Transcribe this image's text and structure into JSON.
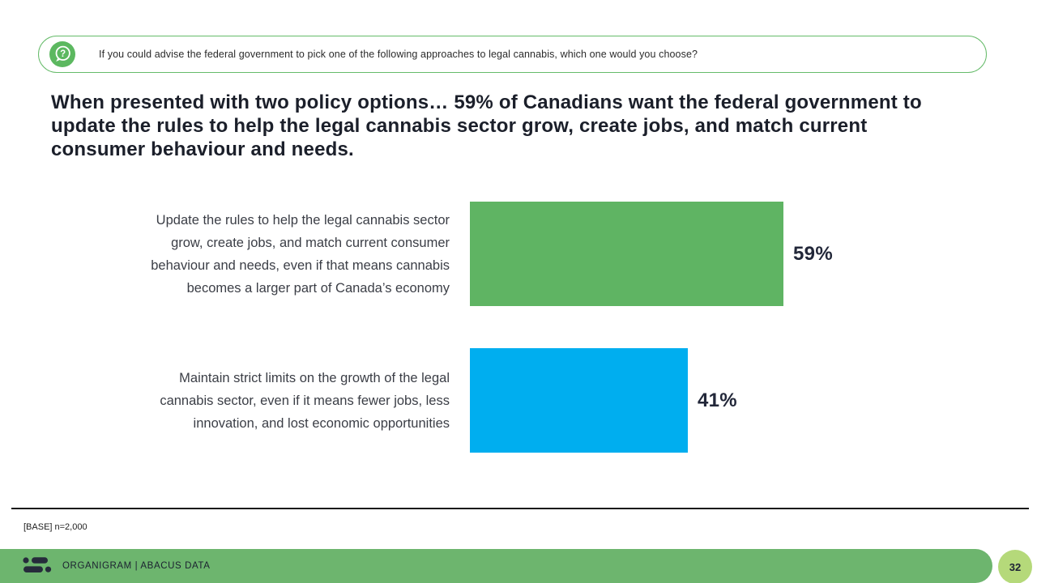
{
  "banner": {
    "icon": "question-speech-bubble-icon",
    "question": "If you could advise the federal government to pick one of the following approaches to legal cannabis, which one would you choose?"
  },
  "headline": "When presented with two policy options… 59% of Canadians want the federal government to update the rules to help the legal cannabis sector grow, create jobs, and match current consumer behaviour and needs.",
  "chart_data": {
    "type": "bar",
    "orientation": "horizontal",
    "title": "",
    "categories": [
      "Update the rules to help the legal cannabis sector grow, create jobs, and match current consumer behaviour and needs, even if that means cannabis becomes a larger part of Canada’s economy",
      "Maintain strict limits on the growth of the legal cannabis sector, even if it means fewer jobs, less innovation, and lost economic opportunities"
    ],
    "values": [
      59,
      41
    ],
    "xlim": [
      0,
      100
    ],
    "grid": false,
    "rows": [
      {
        "label_lines": [
          "Update the rules to help the legal cannabis sector",
          "grow, create jobs, and match current consumer",
          "behaviour and needs, even if that means cannabis",
          "becomes a larger part of Canada’s economy"
        ],
        "value": 59,
        "value_label": "59%",
        "color": "#5fb463"
      },
      {
        "label_lines": [
          "Maintain strict limits on the growth of the legal",
          "cannabis sector, even if it means fewer jobs, less",
          "innovation, and lost economic opportunities"
        ],
        "value": 41,
        "value_label": "41%",
        "color": "#00aeef"
      }
    ]
  },
  "footnote": "[BASE] n=2,000",
  "footer": {
    "brand": "ORGANIGRAM | ABACUS DATA",
    "page_number": "32",
    "bar_color": "#6db56e",
    "page_circle_color": "#b5d97a",
    "logo_color": "#262b3b"
  },
  "colors": {
    "accent_green": "#66bb6a",
    "bar_green": "#5fb463",
    "bar_blue": "#00aeef",
    "text_dark": "#1b1f2a"
  }
}
